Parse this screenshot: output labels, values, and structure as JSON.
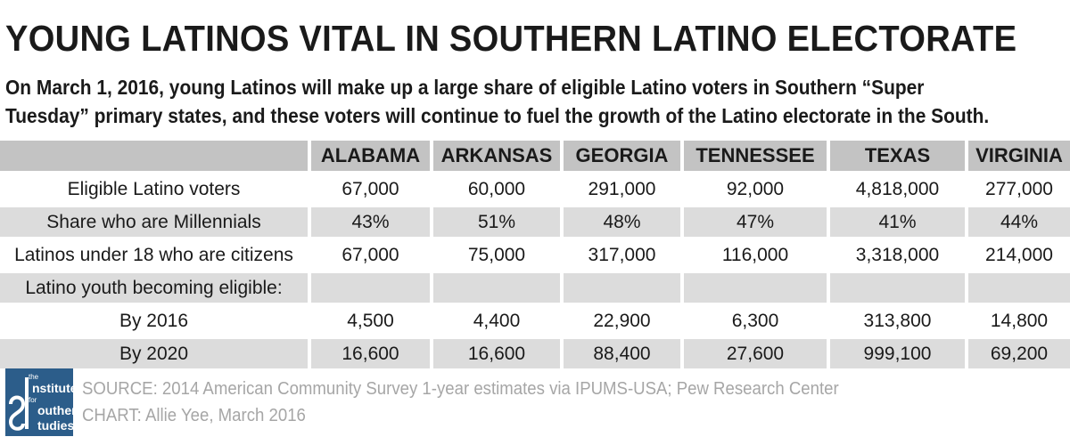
{
  "title": "YOUNG LATINOS VITAL IN SOUTHERN LATINO ELECTORATE",
  "subtitle": "On March 1, 2016, young Latinos will make up a large share of eligible Latino voters in Southern “Super Tuesday” primary states, and these voters will continue to fuel the growth of the Latino electorate in the South.",
  "chart_data": {
    "type": "table",
    "columns": [
      "ALABAMA",
      "ARKANSAS",
      "GEORGIA",
      "TENNESSEE",
      "TEXAS",
      "VIRGINIA"
    ],
    "rows": [
      {
        "label": "Eligible Latino voters",
        "values": [
          "67,000",
          "60,000",
          "291,000",
          "92,000",
          "4,818,000",
          "277,000"
        ]
      },
      {
        "label": "Share who are Millennials",
        "values": [
          "43%",
          "51%",
          "48%",
          "47%",
          "41%",
          "44%"
        ]
      },
      {
        "label": "Latinos under 18 who are citizens",
        "values": [
          "67,000",
          "75,000",
          "317,000",
          "116,000",
          "3,318,000",
          "214,000"
        ]
      },
      {
        "label": "Latino youth becoming eligible:",
        "values": [
          "",
          "",
          "",
          "",
          "",
          ""
        ]
      },
      {
        "label": "By 2016",
        "values": [
          "4,500",
          "4,400",
          "22,900",
          "6,300",
          "313,800",
          "14,800"
        ]
      },
      {
        "label": "By 2020",
        "values": [
          "16,600",
          "16,600",
          "88,400",
          "27,600",
          "999,100",
          "69,200"
        ]
      }
    ]
  },
  "footer": {
    "logo": {
      "line1": "the",
      "line2": "nstitute",
      "line3": "for",
      "line4": "outhern",
      "line5": "tudies"
    },
    "source": "SOURCE: 2014 American Community Survey 1-year estimates via IPUMS-USA; Pew Research Center",
    "credit": "CHART: Allie Yee, March 2016"
  },
  "colors": {
    "header_bg": "#c3c3c3",
    "shade_bg": "#dcdcdc",
    "logo_bg": "#2c5d8a",
    "source_text": "#a6a6a6"
  }
}
